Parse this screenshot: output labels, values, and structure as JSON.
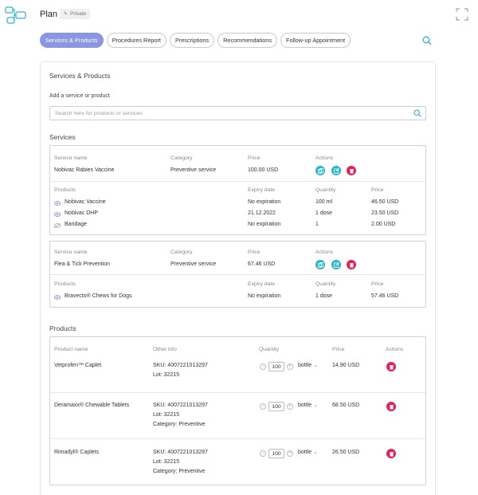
{
  "header": {
    "title": "Plan",
    "badge": "Private"
  },
  "tabs": [
    {
      "label": "Services & Products",
      "active": true
    },
    {
      "label": "Procedures Report",
      "active": false
    },
    {
      "label": "Prescriptions",
      "active": false
    },
    {
      "label": "Recommendations",
      "active": false
    },
    {
      "label": "Follow-up Appointment",
      "active": false
    }
  ],
  "section": {
    "title": "Services & Products",
    "add_label": "Add a service or product",
    "search_placeholder": "Search here for products or services"
  },
  "services": {
    "title": "Services",
    "headers": {
      "name": "Service name",
      "category": "Category",
      "price": "Price",
      "actions": "Actions"
    },
    "product_headers": {
      "products": "Products",
      "expiry": "Expiry date",
      "quantity": "Quantity",
      "price": "Price"
    },
    "items": [
      {
        "name": "Nobivac Rabies Vaccine",
        "category": "Preventive service",
        "price": "100.00 USD",
        "products": [
          {
            "name": "Nobivac Vaccine",
            "expiry": "No expiration",
            "quantity": "100 ml",
            "price": "46.50 USD",
            "icon": "eye-icon"
          },
          {
            "name": "Nobivac DHP",
            "expiry": "21.12.2022",
            "quantity": "1 dose",
            "price": "23.50 USD",
            "icon": "eye-icon"
          },
          {
            "name": "Bandage",
            "expiry": "No expiration",
            "quantity": "1",
            "price": "2.00 USD",
            "icon": "eye-off-icon"
          }
        ]
      },
      {
        "name": "Flea & Tick Prevention",
        "category": "Preventive service",
        "price": "67.46 USD",
        "products": [
          {
            "name": "Bravecto® Chews for Dogs",
            "expiry": "No expiration",
            "quantity": "1 dose",
            "price": "57.46 USD",
            "icon": "eye-icon"
          }
        ]
      }
    ]
  },
  "products": {
    "title": "Products",
    "headers": {
      "name": "Product name",
      "info": "Other info",
      "quantity": "Quantity",
      "price": "Price",
      "actions": "Actions"
    },
    "sku_label": "SKU:",
    "lot_label": "Lot:",
    "category_label": "Category:",
    "items": [
      {
        "name": "Vetprofen™ Caplet",
        "sku": "4007221013297",
        "lot": "32215",
        "category": "",
        "qty": "100",
        "unit": "bottle",
        "price": "14.90 USD"
      },
      {
        "name": "Deramaxx® Chewable Tablets",
        "sku": "4007221013297",
        "lot": "32215",
        "category": "Preventive",
        "qty": "100",
        "unit": "bottle",
        "price": "68.50 USD"
      },
      {
        "name": "Rimadyl® Caplets",
        "sku": "4007221013297",
        "lot": "32215",
        "category": "Preventive",
        "qty": "100",
        "unit": "bottle",
        "price": "26.50 USD"
      }
    ]
  },
  "colors": {
    "accent": "#8a96e0",
    "teal": "#2bb3cf",
    "danger": "#e3215a"
  }
}
